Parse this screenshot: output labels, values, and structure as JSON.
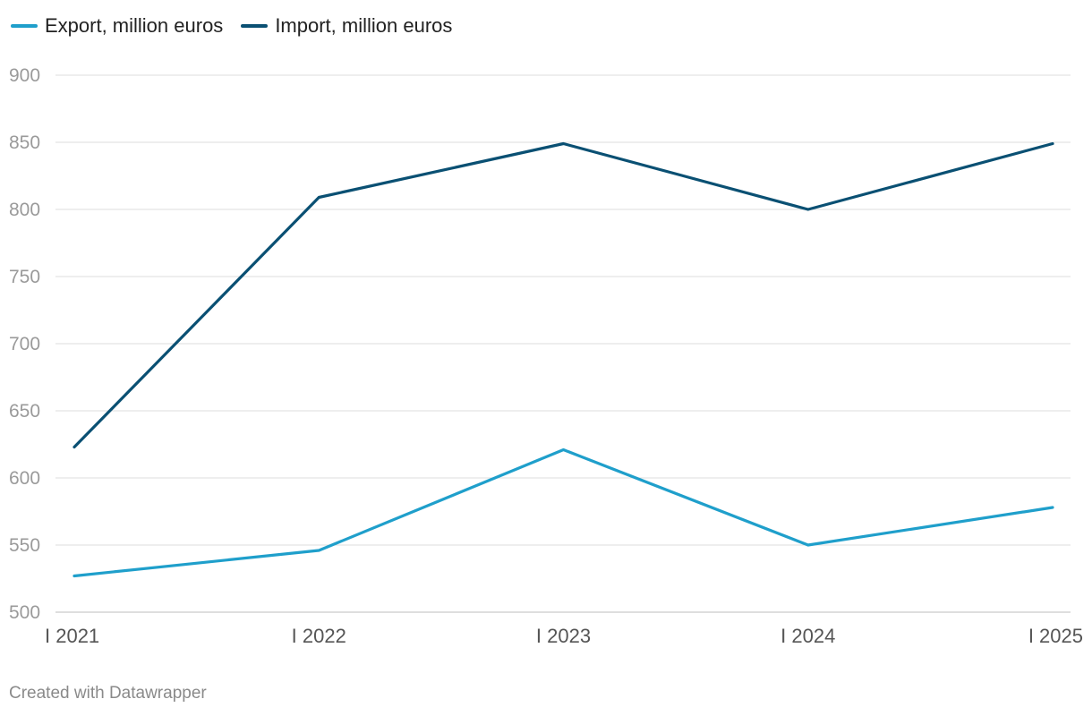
{
  "colors": {
    "export": "#1f9fcb",
    "import": "#0a5073",
    "grid": "#dcdcdc",
    "tick": "#9a9a9a"
  },
  "legend": [
    {
      "label": "Export, million euros",
      "color": "#1f9fcb"
    },
    {
      "label": "Import, million euros",
      "color": "#0a5073"
    }
  ],
  "chart_data": {
    "type": "line",
    "categories": [
      "I 2021",
      "I 2022",
      "I 2023",
      "I 2024",
      "I 2025"
    ],
    "series": [
      {
        "name": "Export, million euros",
        "values": [
          527,
          546,
          621,
          550,
          578
        ],
        "color": "#1f9fcb"
      },
      {
        "name": "Import, million euros",
        "values": [
          623,
          809,
          849,
          800,
          849
        ],
        "color": "#0a5073"
      }
    ],
    "y_ticks": [
      900,
      850,
      800,
      750,
      700,
      650,
      600,
      550,
      500
    ],
    "ylim": [
      500,
      900
    ],
    "grid": true,
    "legend_position": "top-left"
  },
  "footer": {
    "credit": "Created with Datawrapper"
  }
}
